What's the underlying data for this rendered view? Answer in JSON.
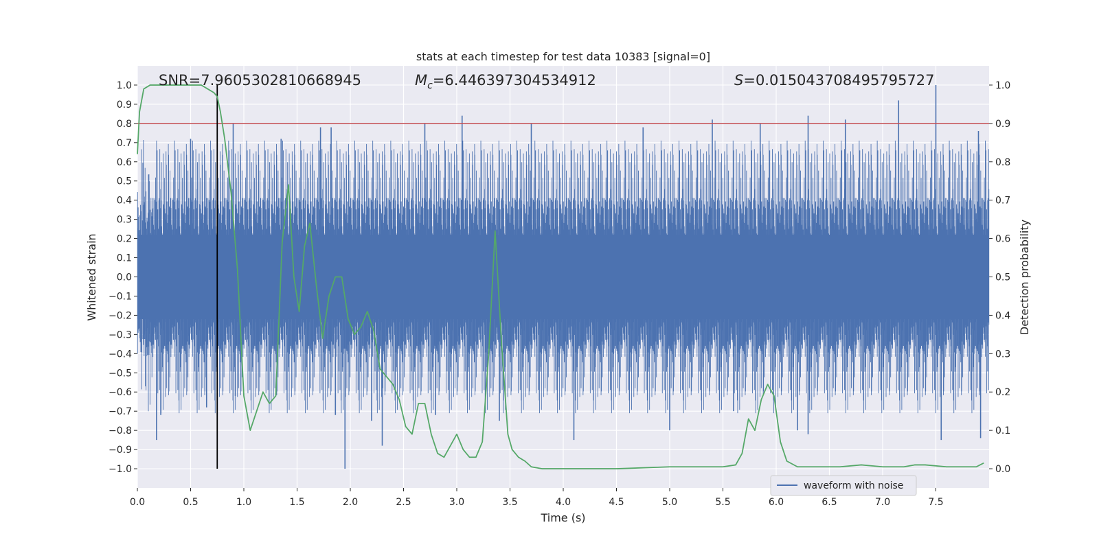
{
  "chart_data": {
    "type": "line",
    "title": "stats at each timestep for test data 10383 [signal=0]",
    "xlabel": "Time (s)",
    "ylabel_left": "Whitened strain",
    "ylabel_right": "Detection probability",
    "xlim": [
      0.0,
      8.0
    ],
    "ylim_left": [
      -1.1,
      1.1
    ],
    "ylim_right": [
      -0.05,
      1.05
    ],
    "x_ticks": [
      "0.0",
      "0.5",
      "1.0",
      "1.5",
      "2.0",
      "2.5",
      "3.0",
      "3.5",
      "4.0",
      "4.5",
      "5.0",
      "5.5",
      "6.0",
      "6.5",
      "7.0",
      "7.5"
    ],
    "y_left_ticks": [
      "1.0",
      "0.9",
      "0.8",
      "0.7",
      "0.6",
      "0.5",
      "0.4",
      "0.3",
      "0.2",
      "0.1",
      "0.0",
      "-0.1",
      "-0.2",
      "-0.3",
      "-0.4",
      "-0.5",
      "-0.6",
      "-0.7",
      "-0.8",
      "-0.9",
      "-1.0"
    ],
    "y_right_ticks": [
      "1.0",
      "0.9",
      "0.8",
      "0.7",
      "0.6",
      "0.5",
      "0.4",
      "0.3",
      "0.2",
      "0.1",
      "0.0"
    ],
    "grid": true,
    "annotations": {
      "snr": "SNR=7.9605302810668945",
      "mc": "=6.446397304534912",
      "mc_symbol": "M",
      "mc_sub": "c",
      "s": "=0.015043708495795727",
      "s_symbol": "S"
    },
    "threshold": {
      "value": 0.9,
      "axis": "right",
      "color": "#c44e52"
    },
    "marker_time": 0.75,
    "waveform": {
      "name": "waveform with noise",
      "color": "#4c72b0",
      "envelope": 0.42,
      "spikes": [
        {
          "x": 0.18,
          "y": -0.85
        },
        {
          "x": 0.22,
          "y": -0.72
        },
        {
          "x": 0.5,
          "y": 0.72
        },
        {
          "x": 0.65,
          "y": -0.68
        },
        {
          "x": 0.75,
          "y": -0.72
        },
        {
          "x": 0.9,
          "y": 0.8
        },
        {
          "x": 0.92,
          "y": -0.62
        },
        {
          "x": 1.35,
          "y": 0.72
        },
        {
          "x": 1.72,
          "y": 0.78
        },
        {
          "x": 1.82,
          "y": 0.78
        },
        {
          "x": 1.86,
          "y": -0.72
        },
        {
          "x": 1.95,
          "y": -1.0
        },
        {
          "x": 2.2,
          "y": -0.75
        },
        {
          "x": 2.3,
          "y": -0.88
        },
        {
          "x": 2.7,
          "y": 0.8
        },
        {
          "x": 2.8,
          "y": -0.72
        },
        {
          "x": 3.05,
          "y": 0.84
        },
        {
          "x": 3.4,
          "y": -0.75
        },
        {
          "x": 3.7,
          "y": 0.8
        },
        {
          "x": 4.1,
          "y": -0.85
        },
        {
          "x": 4.75,
          "y": 0.78
        },
        {
          "x": 5.0,
          "y": -0.8
        },
        {
          "x": 5.4,
          "y": 0.82
        },
        {
          "x": 5.6,
          "y": -0.7
        },
        {
          "x": 5.85,
          "y": 0.8
        },
        {
          "x": 6.2,
          "y": -0.8
        },
        {
          "x": 6.3,
          "y": 0.84
        },
        {
          "x": 6.3,
          "y": -0.82
        },
        {
          "x": 6.65,
          "y": 0.82
        },
        {
          "x": 7.15,
          "y": 0.92
        },
        {
          "x": 7.5,
          "y": 1.0
        },
        {
          "x": 7.55,
          "y": -0.85
        },
        {
          "x": 7.9,
          "y": 0.76
        },
        {
          "x": 7.92,
          "y": -0.84
        }
      ]
    },
    "probability": {
      "name": "detection probability",
      "color": "#55a868",
      "x": [
        0.0,
        0.02,
        0.06,
        0.12,
        0.2,
        0.3,
        0.4,
        0.5,
        0.6,
        0.66,
        0.72,
        0.75,
        0.78,
        0.82,
        0.88,
        0.94,
        1.0,
        1.06,
        1.12,
        1.18,
        1.24,
        1.3,
        1.36,
        1.42,
        1.47,
        1.52,
        1.57,
        1.62,
        1.68,
        1.74,
        1.8,
        1.86,
        1.92,
        1.98,
        2.04,
        2.1,
        2.16,
        2.22,
        2.28,
        2.34,
        2.4,
        2.46,
        2.52,
        2.58,
        2.64,
        2.7,
        2.76,
        2.82,
        2.88,
        2.94,
        3.0,
        3.06,
        3.12,
        3.18,
        3.24,
        3.3,
        3.36,
        3.42,
        3.48,
        3.52,
        3.58,
        3.64,
        3.7,
        3.8,
        4.0,
        4.5,
        5.0,
        5.5,
        5.62,
        5.68,
        5.74,
        5.8,
        5.86,
        5.92,
        5.98,
        6.04,
        6.1,
        6.2,
        6.4,
        6.6,
        6.8,
        7.0,
        7.2,
        7.3,
        7.4,
        7.6,
        7.8,
        7.88,
        7.95
      ],
      "y": [
        0.82,
        0.93,
        0.99,
        1.0,
        1.0,
        1.0,
        1.0,
        1.0,
        1.0,
        0.99,
        0.98,
        0.97,
        0.93,
        0.86,
        0.72,
        0.52,
        0.19,
        0.1,
        0.15,
        0.2,
        0.17,
        0.19,
        0.59,
        0.74,
        0.5,
        0.41,
        0.58,
        0.64,
        0.48,
        0.34,
        0.45,
        0.5,
        0.5,
        0.39,
        0.35,
        0.37,
        0.41,
        0.36,
        0.26,
        0.24,
        0.22,
        0.18,
        0.11,
        0.09,
        0.17,
        0.17,
        0.09,
        0.04,
        0.03,
        0.06,
        0.09,
        0.05,
        0.03,
        0.03,
        0.07,
        0.3,
        0.62,
        0.33,
        0.09,
        0.05,
        0.03,
        0.02,
        0.005,
        0.0,
        0.0,
        0.0,
        0.005,
        0.005,
        0.01,
        0.04,
        0.13,
        0.1,
        0.18,
        0.22,
        0.19,
        0.07,
        0.02,
        0.005,
        0.005,
        0.005,
        0.01,
        0.005,
        0.005,
        0.01,
        0.01,
        0.005,
        0.005,
        0.005,
        0.015
      ]
    },
    "legend": {
      "position": "lower-right",
      "entries": [
        "waveform with noise"
      ]
    }
  }
}
